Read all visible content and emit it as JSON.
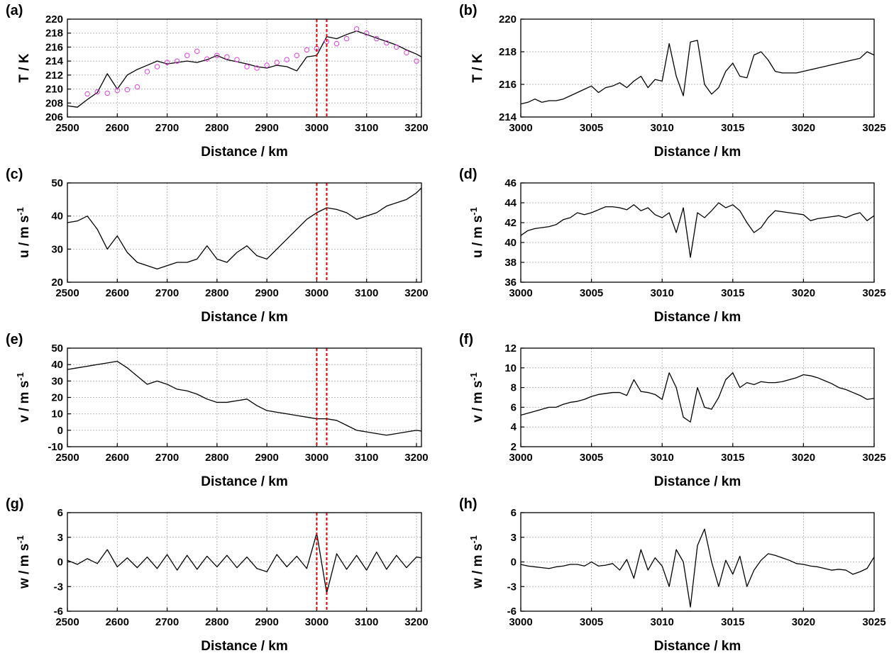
{
  "chart_data": [
    {
      "type": "line",
      "panel_label": "(a)",
      "ylabel": "T / K",
      "xlabel": "Distance / km",
      "x": [
        2500,
        2520,
        2540,
        2560,
        2580,
        2600,
        2620,
        2640,
        2660,
        2680,
        2700,
        2720,
        2740,
        2760,
        2780,
        2800,
        2820,
        2840,
        2860,
        2880,
        2900,
        2920,
        2940,
        2960,
        2980,
        3000,
        3020,
        3040,
        3060,
        3080,
        3100,
        3120,
        3140,
        3160,
        3180,
        3200,
        3210
      ],
      "series": [
        {
          "color": "#000000",
          "values": [
            207.6,
            207.4,
            208.5,
            209.5,
            212.2,
            210,
            212,
            212.8,
            213.4,
            214,
            213.6,
            213.8,
            214,
            213.8,
            214.2,
            214.8,
            214.2,
            213.9,
            213.6,
            213.2,
            213,
            213.4,
            213.2,
            212.6,
            214.6,
            214.8,
            217.5,
            217.2,
            217.8,
            218.3,
            217.8,
            217.3,
            216.8,
            216.3,
            215.6,
            215,
            214.6
          ]
        },
        {
          "style": "markers",
          "color": "#e040e0",
          "x": [
            2540,
            2560,
            2580,
            2600,
            2620,
            2640,
            2660,
            2680,
            2700,
            2720,
            2740,
            2760,
            2780,
            2800,
            2820,
            2840,
            2860,
            2880,
            2900,
            2920,
            2940,
            2960,
            2980,
            3000,
            3020,
            3040,
            3060,
            3080,
            3100,
            3120,
            3140,
            3160,
            3180,
            3200
          ],
          "values": [
            209.3,
            209.6,
            209.4,
            209.8,
            209.9,
            210.3,
            212.5,
            213.2,
            213.8,
            214,
            214.8,
            215.4,
            214.3,
            214.8,
            214.6,
            214.2,
            213.2,
            213,
            213.4,
            213.8,
            214.2,
            214.8,
            215.6,
            215.8,
            216.8,
            216.5,
            217.2,
            218.6,
            218,
            217.2,
            216.6,
            216,
            215.2,
            214
          ]
        }
      ],
      "xlim": [
        2500,
        3210
      ],
      "xticks": [
        2500,
        2600,
        2700,
        2800,
        2900,
        3000,
        3100,
        3200
      ],
      "ylim": [
        206,
        220
      ],
      "yticks": [
        206,
        208,
        210,
        212,
        214,
        216,
        218,
        220
      ],
      "grid": true,
      "vlines": [
        3000,
        3020
      ],
      "vline_color": "#e00000"
    },
    {
      "type": "line",
      "panel_label": "(b)",
      "ylabel": "T / K",
      "xlabel": "Distance / km",
      "x": [
        3000,
        3000.5,
        3001,
        3001.5,
        3002,
        3002.5,
        3003,
        3003.5,
        3004,
        3004.5,
        3005,
        3005.5,
        3006,
        3006.5,
        3007,
        3007.5,
        3008,
        3008.5,
        3009,
        3009.5,
        3010,
        3010.5,
        3011,
        3011.5,
        3012,
        3012.5,
        3013,
        3013.5,
        3014,
        3014.5,
        3015,
        3015.5,
        3016,
        3016.5,
        3017,
        3017.5,
        3018,
        3018.5,
        3019,
        3019.5,
        3020,
        3020.5,
        3021,
        3021.5,
        3022,
        3022.5,
        3023,
        3023.5,
        3024,
        3024.5,
        3025
      ],
      "series": [
        {
          "color": "#000000",
          "values": [
            214.8,
            214.9,
            215.1,
            214.9,
            215,
            215,
            215.1,
            215.3,
            215.5,
            215.7,
            215.9,
            215.5,
            215.8,
            215.9,
            216.1,
            215.8,
            216.2,
            216.5,
            215.8,
            216.3,
            216.2,
            218.5,
            216.5,
            215.3,
            218.6,
            218.7,
            216,
            215.4,
            215.8,
            216.8,
            217.3,
            216.5,
            216.4,
            217.8,
            218,
            217.5,
            216.8,
            216.7,
            216.7,
            216.7,
            216.8,
            216.9,
            217,
            217.1,
            217.2,
            217.3,
            217.4,
            217.5,
            217.6,
            218,
            217.8
          ]
        }
      ],
      "xlim": [
        3000,
        3025
      ],
      "xticks": [
        3000,
        3005,
        3010,
        3015,
        3020,
        3025
      ],
      "ylim": [
        214,
        220
      ],
      "yticks": [
        214,
        216,
        218,
        220
      ],
      "grid": true
    },
    {
      "type": "line",
      "panel_label": "(c)",
      "ylabel": "u / m s",
      "ylabel_sup": "-1",
      "xlabel": "Distance / km",
      "x": [
        2500,
        2520,
        2540,
        2560,
        2580,
        2600,
        2620,
        2640,
        2660,
        2680,
        2700,
        2720,
        2740,
        2760,
        2780,
        2800,
        2820,
        2840,
        2860,
        2880,
        2900,
        2920,
        2940,
        2960,
        2980,
        3000,
        3020,
        3040,
        3060,
        3080,
        3100,
        3120,
        3140,
        3160,
        3180,
        3200,
        3210
      ],
      "series": [
        {
          "color": "#000000",
          "values": [
            38,
            38.5,
            40,
            36,
            30,
            34,
            29,
            26,
            25,
            24,
            25,
            26,
            26,
            27,
            31,
            27,
            26,
            29,
            31,
            28,
            27,
            30,
            33,
            36,
            39,
            41,
            42.5,
            42,
            41,
            39,
            40,
            41,
            43,
            44,
            45,
            47,
            48.5
          ]
        }
      ],
      "xlim": [
        2500,
        3210
      ],
      "xticks": [
        2500,
        2600,
        2700,
        2800,
        2900,
        3000,
        3100,
        3200
      ],
      "ylim": [
        20,
        50
      ],
      "yticks": [
        20,
        30,
        40,
        50
      ],
      "grid": true,
      "vlines": [
        3000,
        3020
      ],
      "vline_color": "#e00000"
    },
    {
      "type": "line",
      "panel_label": "(d)",
      "ylabel": "u / m s",
      "ylabel_sup": "-1",
      "xlabel": "Distance / km",
      "x": [
        3000,
        3000.5,
        3001,
        3001.5,
        3002,
        3002.5,
        3003,
        3003.5,
        3004,
        3004.5,
        3005,
        3005.5,
        3006,
        3006.5,
        3007,
        3007.5,
        3008,
        3008.5,
        3009,
        3009.5,
        3010,
        3010.5,
        3011,
        3011.5,
        3012,
        3012.5,
        3013,
        3013.5,
        3014,
        3014.5,
        3015,
        3015.5,
        3016,
        3016.5,
        3017,
        3017.5,
        3018,
        3018.5,
        3019,
        3019.5,
        3020,
        3020.5,
        3021,
        3021.5,
        3022,
        3022.5,
        3023,
        3023.5,
        3024,
        3024.5,
        3025
      ],
      "series": [
        {
          "color": "#000000",
          "values": [
            40.7,
            41.2,
            41.4,
            41.5,
            41.6,
            41.8,
            42.3,
            42.5,
            43,
            42.8,
            43,
            43.3,
            43.6,
            43.6,
            43.5,
            43.3,
            43.8,
            43.2,
            43.5,
            42.8,
            42.5,
            43,
            41,
            43.5,
            38.5,
            43,
            42.5,
            43.2,
            44,
            43.5,
            43.8,
            43.2,
            42,
            41,
            41.5,
            42.5,
            43.2,
            43.1,
            43,
            42.9,
            42.8,
            42.2,
            42.4,
            42.5,
            42.6,
            42.7,
            42.5,
            42.8,
            43,
            42.2,
            42.7
          ]
        }
      ],
      "xlim": [
        3000,
        3025
      ],
      "xticks": [
        3000,
        3005,
        3010,
        3015,
        3020,
        3025
      ],
      "ylim": [
        36,
        46
      ],
      "yticks": [
        36,
        38,
        40,
        42,
        44,
        46
      ],
      "grid": true
    },
    {
      "type": "line",
      "panel_label": "(e)",
      "ylabel": "v / m s",
      "ylabel_sup": "-1",
      "xlabel": "Distance / km",
      "x": [
        2500,
        2520,
        2540,
        2560,
        2580,
        2600,
        2620,
        2640,
        2660,
        2680,
        2700,
        2720,
        2740,
        2760,
        2780,
        2800,
        2820,
        2840,
        2860,
        2880,
        2900,
        2920,
        2940,
        2960,
        2980,
        3000,
        3020,
        3040,
        3060,
        3080,
        3100,
        3120,
        3140,
        3160,
        3180,
        3200,
        3210
      ],
      "series": [
        {
          "color": "#000000",
          "values": [
            37,
            38,
            39,
            40,
            41,
            42,
            38,
            33,
            28,
            30,
            28,
            25,
            24,
            22,
            19,
            17,
            17,
            18,
            19,
            15,
            12,
            11,
            10,
            9,
            8,
            7,
            7,
            6,
            3,
            0,
            -1,
            -2,
            -3,
            -2,
            -1,
            0,
            -0.5
          ]
        }
      ],
      "xlim": [
        2500,
        3210
      ],
      "xticks": [
        2500,
        2600,
        2700,
        2800,
        2900,
        3000,
        3100,
        3200
      ],
      "ylim": [
        -10,
        50
      ],
      "yticks": [
        -10,
        0,
        10,
        20,
        30,
        40,
        50
      ],
      "grid": true,
      "vlines": [
        3000,
        3020
      ],
      "vline_color": "#e00000"
    },
    {
      "type": "line",
      "panel_label": "(f)",
      "ylabel": "v / m s",
      "ylabel_sup": "-1",
      "xlabel": "Distance / km",
      "x": [
        3000,
        3000.5,
        3001,
        3001.5,
        3002,
        3002.5,
        3003,
        3003.5,
        3004,
        3004.5,
        3005,
        3005.5,
        3006,
        3006.5,
        3007,
        3007.5,
        3008,
        3008.5,
        3009,
        3009.5,
        3010,
        3010.5,
        3011,
        3011.5,
        3012,
        3012.5,
        3013,
        3013.5,
        3014,
        3014.5,
        3015,
        3015.5,
        3016,
        3016.5,
        3017,
        3017.5,
        3018,
        3018.5,
        3019,
        3019.5,
        3020,
        3020.5,
        3021,
        3021.5,
        3022,
        3022.5,
        3023,
        3023.5,
        3024,
        3024.5,
        3025
      ],
      "series": [
        {
          "color": "#000000",
          "values": [
            5.2,
            5.4,
            5.6,
            5.8,
            6,
            6,
            6.3,
            6.5,
            6.6,
            6.8,
            7.1,
            7.3,
            7.4,
            7.5,
            7.5,
            7.2,
            8.8,
            7.6,
            7.5,
            7.3,
            6.8,
            9.5,
            8,
            5,
            4.5,
            8,
            6,
            5.8,
            7,
            8.8,
            9.5,
            8,
            8.5,
            8.3,
            8.6,
            8.5,
            8.5,
            8.6,
            8.8,
            9,
            9.3,
            9.2,
            9,
            8.7,
            8.4,
            8,
            7.8,
            7.5,
            7.2,
            6.8,
            6.9
          ]
        }
      ],
      "xlim": [
        3000,
        3025
      ],
      "xticks": [
        3000,
        3005,
        3010,
        3015,
        3020,
        3025
      ],
      "ylim": [
        2,
        12
      ],
      "yticks": [
        2,
        4,
        6,
        8,
        10,
        12
      ],
      "grid": true
    },
    {
      "type": "line",
      "panel_label": "(g)",
      "ylabel": "w / m s",
      "ylabel_sup": "-1",
      "xlabel": "Distance / km",
      "x": [
        2500,
        2520,
        2540,
        2560,
        2580,
        2600,
        2620,
        2640,
        2660,
        2680,
        2700,
        2720,
        2740,
        2760,
        2780,
        2800,
        2820,
        2840,
        2860,
        2880,
        2900,
        2920,
        2940,
        2960,
        2980,
        3000,
        3020,
        3040,
        3060,
        3080,
        3100,
        3120,
        3140,
        3160,
        3180,
        3200,
        3210
      ],
      "series": [
        {
          "color": "#000000",
          "values": [
            0.2,
            -0.3,
            0.4,
            -0.2,
            1.5,
            -0.6,
            0.5,
            -0.7,
            0.6,
            -0.8,
            0.9,
            -1,
            0.8,
            -0.9,
            0.7,
            -0.6,
            0.8,
            -0.7,
            0.6,
            -0.8,
            -1.2,
            0.9,
            -0.6,
            0.7,
            -0.8,
            3.5,
            -3.8,
            1,
            -0.9,
            0.8,
            -1,
            1.2,
            -0.9,
            0.8,
            -0.7,
            0.6,
            0.5
          ]
        }
      ],
      "xlim": [
        2500,
        3210
      ],
      "xticks": [
        2500,
        2600,
        2700,
        2800,
        2900,
        3000,
        3100,
        3200
      ],
      "ylim": [
        -6,
        6
      ],
      "yticks": [
        -6,
        -3,
        0,
        3,
        6
      ],
      "grid": true,
      "vlines": [
        3000,
        3020
      ],
      "vline_color": "#e00000"
    },
    {
      "type": "line",
      "panel_label": "(h)",
      "ylabel": "w / m s",
      "ylabel_sup": "-1",
      "xlabel": "Distance / km",
      "x": [
        3000,
        3000.5,
        3001,
        3001.5,
        3002,
        3002.5,
        3003,
        3003.5,
        3004,
        3004.5,
        3005,
        3005.5,
        3006,
        3006.5,
        3007,
        3007.5,
        3008,
        3008.5,
        3009,
        3009.5,
        3010,
        3010.5,
        3011,
        3011.5,
        3012,
        3012.5,
        3013,
        3013.5,
        3014,
        3014.5,
        3015,
        3015.5,
        3016,
        3016.5,
        3017,
        3017.5,
        3018,
        3018.5,
        3019,
        3019.5,
        3020,
        3020.5,
        3021,
        3021.5,
        3022,
        3022.5,
        3023,
        3023.5,
        3024,
        3024.5,
        3025
      ],
      "series": [
        {
          "color": "#000000",
          "values": [
            -0.3,
            -0.5,
            -0.6,
            -0.7,
            -0.8,
            -0.6,
            -0.5,
            -0.3,
            -0.3,
            -0.5,
            0,
            -0.5,
            -0.4,
            -0.2,
            -1,
            0.3,
            -2,
            1.5,
            -1,
            0.5,
            -0.5,
            -3,
            1.5,
            0,
            -5.5,
            2,
            4,
            0,
            -3,
            0.2,
            -1.5,
            0.7,
            -3,
            -1,
            0.2,
            1,
            0.8,
            0.5,
            0.2,
            -0.2,
            -0.3,
            -0.5,
            -0.6,
            -0.8,
            -1,
            -0.9,
            -1,
            -1.5,
            -1.2,
            -0.8,
            0.6
          ]
        }
      ],
      "xlim": [
        3000,
        3025
      ],
      "xticks": [
        3000,
        3005,
        3010,
        3015,
        3020,
        3025
      ],
      "ylim": [
        -6,
        6
      ],
      "yticks": [
        -6,
        -3,
        0,
        3,
        6
      ],
      "grid": true
    }
  ]
}
